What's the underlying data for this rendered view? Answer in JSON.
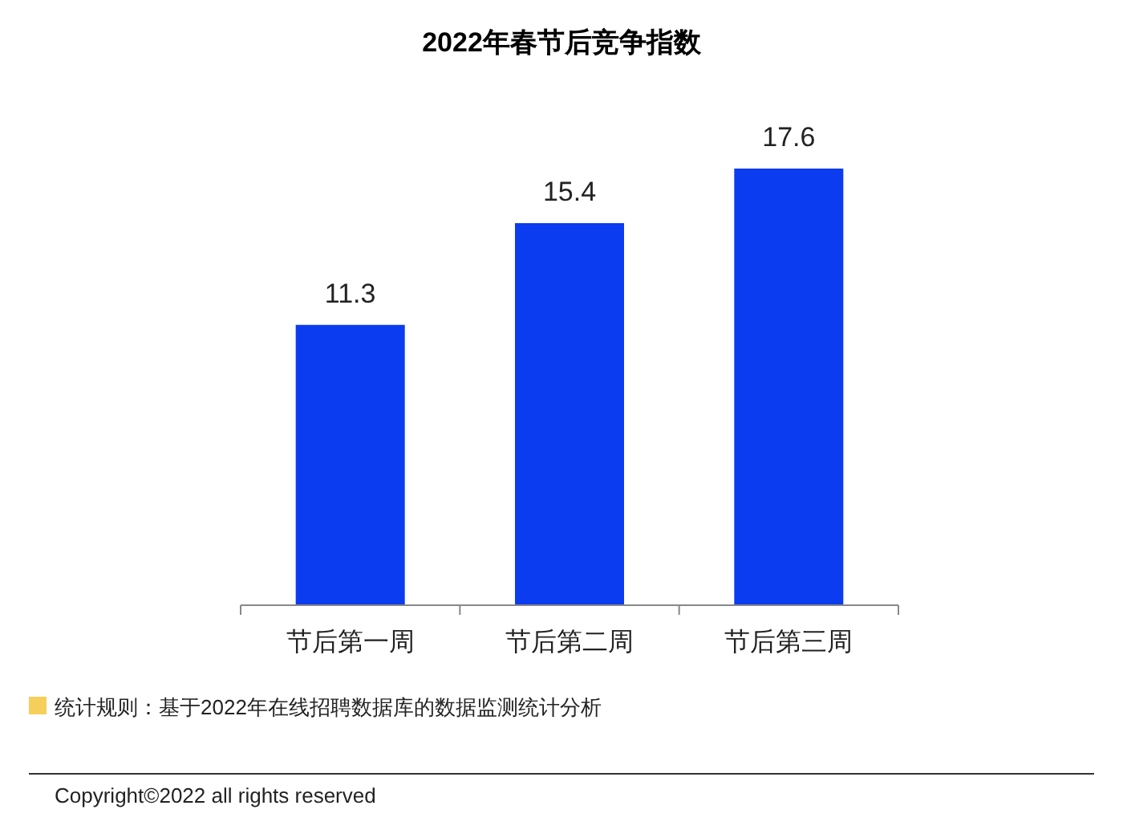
{
  "chart_data": {
    "type": "bar",
    "title": "2022年春节后竞争指数",
    "categories": [
      "节后第一周",
      "节后第二周",
      "节后第三周"
    ],
    "values": [
      11.3,
      15.4,
      17.6
    ],
    "color": "#0b3cf0",
    "data_labels": true,
    "annotations": [
      "统计规则：基于2022年在线招聘数据库的数据监测统计分析",
      "Copyright©2022 all rights reserved"
    ]
  }
}
